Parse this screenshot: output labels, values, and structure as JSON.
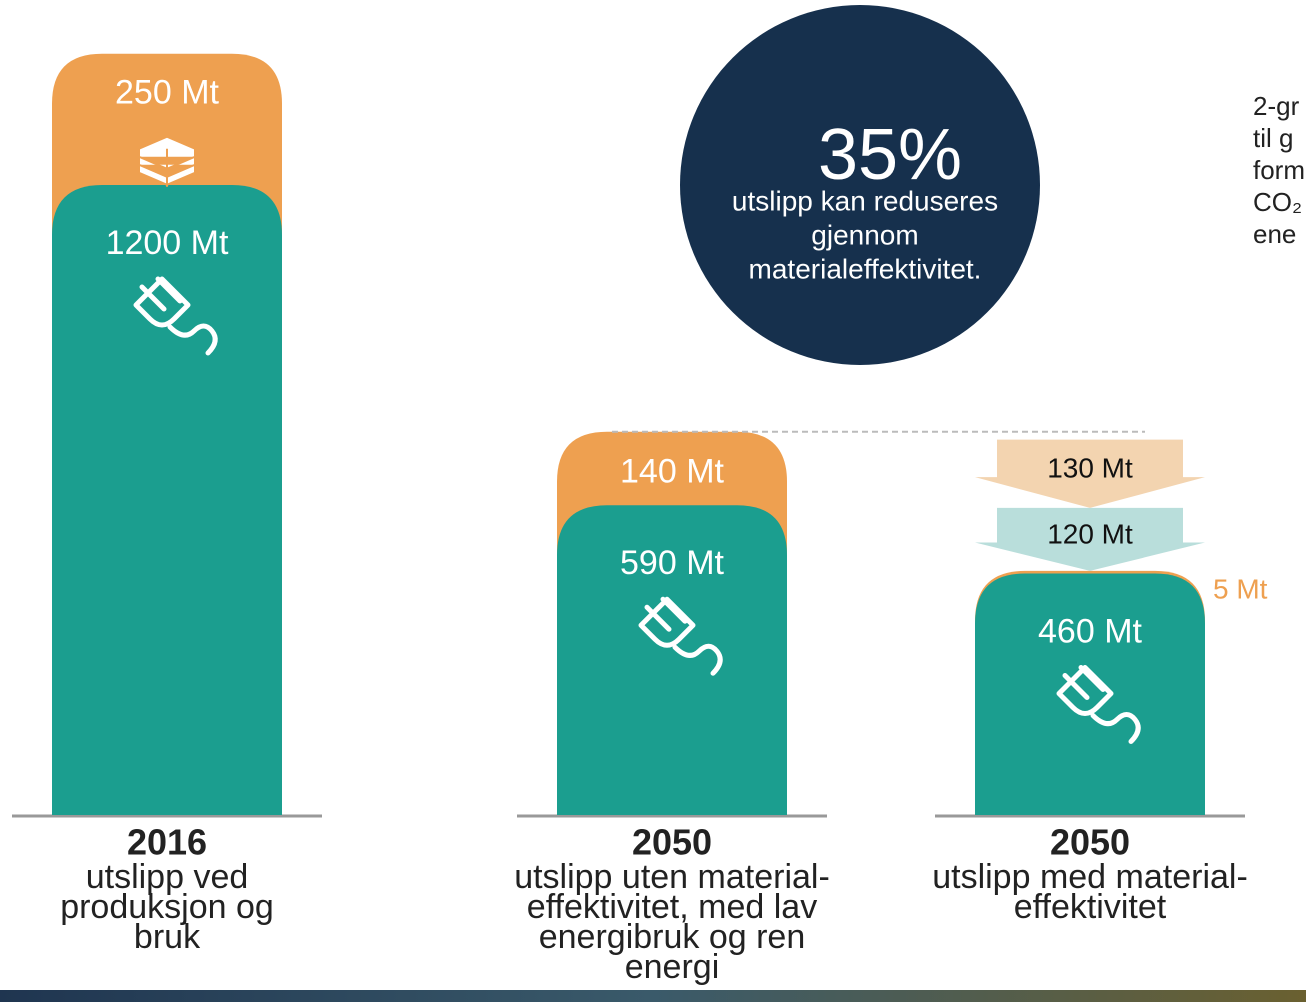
{
  "chart_data": {
    "type": "stacked_bar",
    "categories": [
      "2016",
      "2050",
      "2050"
    ],
    "category_descriptions": [
      [
        "utslipp ved",
        "produksjon og",
        "bruk"
      ],
      [
        "utslipp uten material-",
        "effektivitet, med lav",
        "energibruk og ren",
        "energi"
      ],
      [
        "utslipp med material-",
        "effektivitet"
      ]
    ],
    "series": [
      {
        "color": "#1b9e8f",
        "values": [
          1200,
          590,
          460
        ],
        "value_labels": [
          "1200 Mt",
          "590 Mt",
          "460 Mt"
        ]
      },
      {
        "color": "#eea050",
        "values": [
          250,
          140,
          5
        ],
        "value_labels": [
          "250 Mt",
          "140 Mt",
          "5 Mt"
        ]
      }
    ],
    "reductions": {
      "values": [
        130,
        120
      ],
      "value_labels": [
        "130 Mt",
        "120 Mt"
      ],
      "colors": [
        "#f3d4b0",
        "#b9dedb"
      ]
    },
    "callout": {
      "value": 35,
      "label": "35%",
      "lines": [
        "utslipp kan reduseres",
        "gjennom",
        "materialeffektivitet."
      ],
      "color": "#16304d"
    },
    "side_note": [
      "2-gr",
      "til g",
      "form",
      "CO₂",
      "ene"
    ]
  }
}
